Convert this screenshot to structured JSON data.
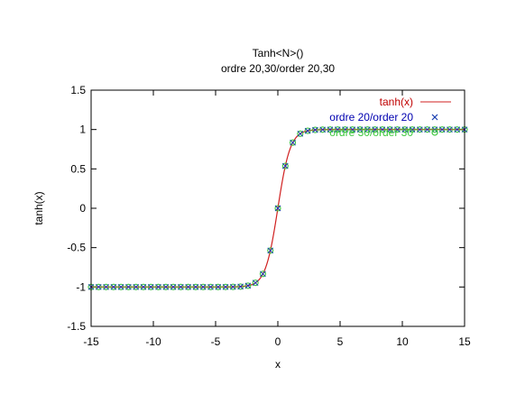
{
  "chart_data": {
    "type": "line",
    "title": "Tanh<N>()",
    "subtitle": "ordre 20,30/order 20,30",
    "xlabel": "x",
    "ylabel": "tanh(x)",
    "xlim": [
      -15,
      15
    ],
    "ylim": [
      -1.5,
      1.5
    ],
    "grid": false,
    "legend_position": "top-right",
    "xticks": [
      "-15",
      "-10",
      "-5",
      "0",
      "5",
      "10",
      "15"
    ],
    "yticks": [
      "-1.5",
      "-1",
      "-0.5",
      "0",
      "0.5",
      "1",
      "1.5"
    ],
    "series": [
      {
        "name": "tanh(x)",
        "style": "line",
        "color": "#d02020",
        "x_range": [
          -15,
          15
        ]
      },
      {
        "name": "ordre 20/order 20",
        "style": "cross",
        "color": "#1a3fb0",
        "x_range": [
          -15,
          15
        ],
        "step": 0.6
      },
      {
        "name": "ordre 30/order 30",
        "style": "circle",
        "color": "#3ec83e",
        "x_range": [
          -15,
          15
        ],
        "step": 0.6
      }
    ]
  }
}
